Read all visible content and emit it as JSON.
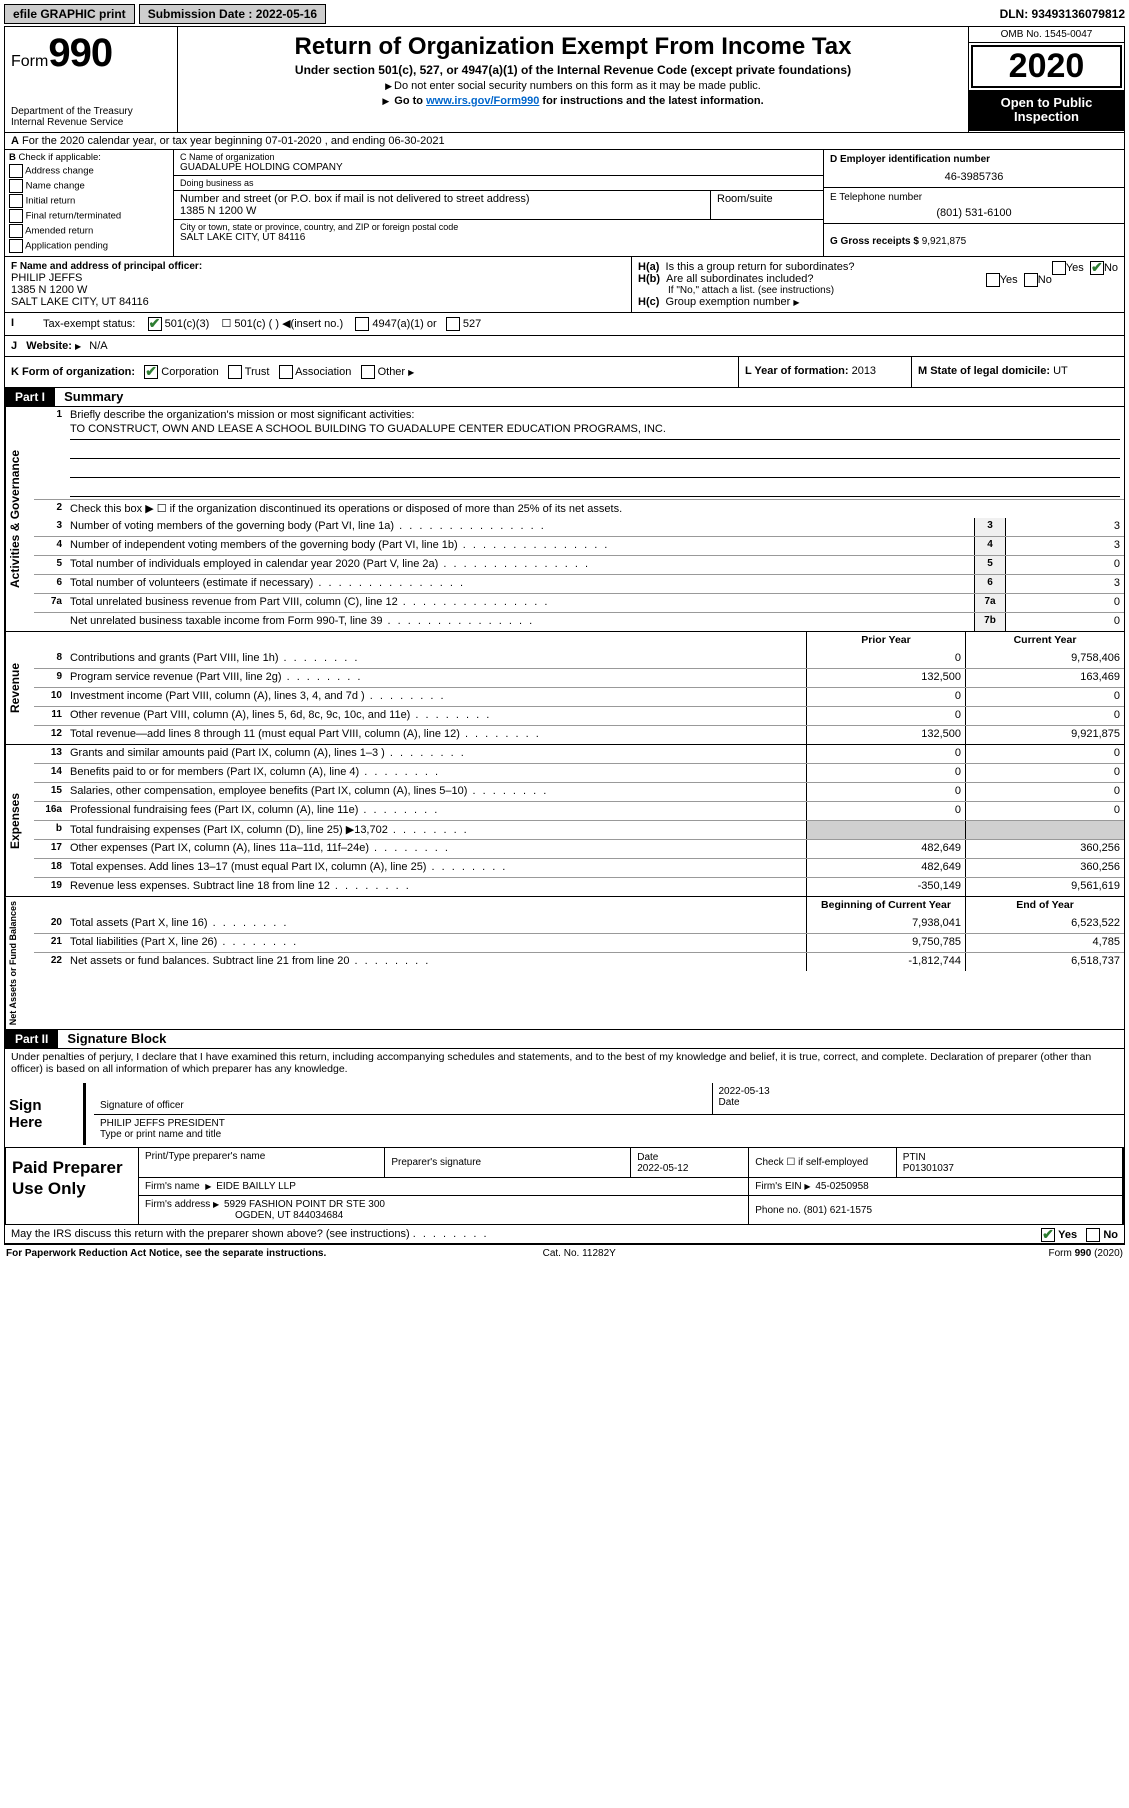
{
  "topbar": {
    "efile": "efile GRAPHIC print",
    "submission_label": "Submission Date : 2022-05-16",
    "dln": "DLN: 93493136079812"
  },
  "header": {
    "form_word": "Form",
    "form_num": "990",
    "dept": "Department of the Treasury\nInternal Revenue Service",
    "title": "Return of Organization Exempt From Income Tax",
    "subtitle": "Under section 501(c), 527, or 4947(a)(1) of the Internal Revenue Code (except private foundations)",
    "note1": "Do not enter social security numbers on this form as it may be made public.",
    "note2_pre": "Go to ",
    "note2_link": "www.irs.gov/Form990",
    "note2_post": " for instructions and the latest information.",
    "omb": "OMB No. 1545-0047",
    "year": "2020",
    "open": "Open to Public Inspection"
  },
  "periodA": "For the 2020 calendar year, or tax year beginning 07-01-2020    , and ending 06-30-2021",
  "boxB": {
    "label": "Check if applicable:",
    "items": [
      "Address change",
      "Name change",
      "Initial return",
      "Final return/terminated",
      "Amended return",
      "Application pending"
    ]
  },
  "boxC": {
    "name_lbl": "C Name of organization",
    "name": "GUADALUPE HOLDING COMPANY",
    "dba_lbl": "Doing business as",
    "dba": "",
    "addr_lbl": "Number and street (or P.O. box if mail is not delivered to street address)",
    "room_lbl": "Room/suite",
    "addr": "1385 N 1200 W",
    "city_lbl": "City or town, state or province, country, and ZIP or foreign postal code",
    "city": "SALT LAKE CITY, UT  84116"
  },
  "boxD": {
    "lbl": "D Employer identification number",
    "val": "46-3985736"
  },
  "boxE": {
    "lbl": "E Telephone number",
    "val": "(801) 531-6100"
  },
  "boxG": {
    "lbl": "G Gross receipts $",
    "val": "9,921,875"
  },
  "boxF": {
    "lbl": "F  Name and address of principal officer:",
    "name": "PHILIP JEFFS",
    "addr1": "1385 N 1200 W",
    "addr2": "SALT LAKE CITY, UT  84116"
  },
  "boxH": {
    "a": "Is this a group return for subordinates?",
    "b": "Are all subordinates included?",
    "b_note": "If \"No,\" attach a list. (see instructions)",
    "c": "Group exemption number"
  },
  "rowI": {
    "lbl": "Tax-exempt status:",
    "opts": [
      "501(c)(3)",
      "501(c) (  )",
      "(insert no.)",
      "4947(a)(1) or",
      "527"
    ]
  },
  "rowJ": {
    "lbl": "Website:",
    "val": "N/A"
  },
  "rowK": {
    "lbl": "K Form of organization:",
    "opts": [
      "Corporation",
      "Trust",
      "Association",
      "Other"
    ],
    "L_lbl": "L Year of formation:",
    "L_val": "2013",
    "M_lbl": "M State of legal domicile:",
    "M_val": "UT"
  },
  "part1": {
    "hdr": "Part I",
    "title": "Summary",
    "q1": "Briefly describe the organization's mission or most significant activities:",
    "mission": "TO CONSTRUCT, OWN AND LEASE A SCHOOL BUILDING TO GUADALUPE CENTER EDUCATION PROGRAMS, INC.",
    "q2": "Check this box ▶ ☐  if the organization discontinued its operations or disposed of more than 25% of its net assets.",
    "lines_gov": [
      {
        "n": "3",
        "t": "Number of voting members of the governing body (Part VI, line 1a)",
        "box": "3",
        "v": "3"
      },
      {
        "n": "4",
        "t": "Number of independent voting members of the governing body (Part VI, line 1b)",
        "box": "4",
        "v": "3"
      },
      {
        "n": "5",
        "t": "Total number of individuals employed in calendar year 2020 (Part V, line 2a)",
        "box": "5",
        "v": "0"
      },
      {
        "n": "6",
        "t": "Total number of volunteers (estimate if necessary)",
        "box": "6",
        "v": "3"
      },
      {
        "n": "7a",
        "t": "Total unrelated business revenue from Part VIII, column (C), line 12",
        "box": "7a",
        "v": "0"
      },
      {
        "n": "",
        "t": "Net unrelated business taxable income from Form 990-T, line 39",
        "box": "7b",
        "v": "0"
      }
    ],
    "col_prior": "Prior Year",
    "col_current": "Current Year",
    "lines_rev": [
      {
        "n": "8",
        "t": "Contributions and grants (Part VIII, line 1h)",
        "p": "0",
        "c": "9,758,406"
      },
      {
        "n": "9",
        "t": "Program service revenue (Part VIII, line 2g)",
        "p": "132,500",
        "c": "163,469"
      },
      {
        "n": "10",
        "t": "Investment income (Part VIII, column (A), lines 3, 4, and 7d )",
        "p": "0",
        "c": "0"
      },
      {
        "n": "11",
        "t": "Other revenue (Part VIII, column (A), lines 5, 6d, 8c, 9c, 10c, and 11e)",
        "p": "0",
        "c": "0"
      },
      {
        "n": "12",
        "t": "Total revenue—add lines 8 through 11 (must equal Part VIII, column (A), line 12)",
        "p": "132,500",
        "c": "9,921,875"
      }
    ],
    "lines_exp": [
      {
        "n": "13",
        "t": "Grants and similar amounts paid (Part IX, column (A), lines 1–3 )",
        "p": "0",
        "c": "0"
      },
      {
        "n": "14",
        "t": "Benefits paid to or for members (Part IX, column (A), line 4)",
        "p": "0",
        "c": "0"
      },
      {
        "n": "15",
        "t": "Salaries, other compensation, employee benefits (Part IX, column (A), lines 5–10)",
        "p": "0",
        "c": "0"
      },
      {
        "n": "16a",
        "t": "Professional fundraising fees (Part IX, column (A), line 11e)",
        "p": "0",
        "c": "0"
      },
      {
        "n": "b",
        "t": "Total fundraising expenses (Part IX, column (D), line 25) ▶13,702",
        "p": "",
        "c": "",
        "gray": true
      },
      {
        "n": "17",
        "t": "Other expenses (Part IX, column (A), lines 11a–11d, 11f–24e)",
        "p": "482,649",
        "c": "360,256"
      },
      {
        "n": "18",
        "t": "Total expenses. Add lines 13–17 (must equal Part IX, column (A), line 25)",
        "p": "482,649",
        "c": "360,256"
      },
      {
        "n": "19",
        "t": "Revenue less expenses. Subtract line 18 from line 12",
        "p": "-350,149",
        "c": "9,561,619"
      }
    ],
    "col_begin": "Beginning of Current Year",
    "col_end": "End of Year",
    "lines_net": [
      {
        "n": "20",
        "t": "Total assets (Part X, line 16)",
        "p": "7,938,041",
        "c": "6,523,522"
      },
      {
        "n": "21",
        "t": "Total liabilities (Part X, line 26)",
        "p": "9,750,785",
        "c": "4,785"
      },
      {
        "n": "22",
        "t": "Net assets or fund balances. Subtract line 21 from line 20",
        "p": "-1,812,744",
        "c": "6,518,737"
      }
    ],
    "tab_gov": "Activities & Governance",
    "tab_rev": "Revenue",
    "tab_exp": "Expenses",
    "tab_net": "Net Assets or Fund Balances"
  },
  "part2": {
    "hdr": "Part II",
    "title": "Signature Block",
    "perjury": "Under penalties of perjury, I declare that I have examined this return, including accompanying schedules and statements, and to the best of my knowledge and belief, it is true, correct, and complete. Declaration of preparer (other than officer) is based on all information of which preparer has any knowledge.",
    "sign_here": "Sign Here",
    "sig_officer": "Signature of officer",
    "sig_date_lbl": "Date",
    "sig_date": "2022-05-13",
    "sig_name": "PHILIP JEFFS PRESIDENT",
    "sig_name_lbl": "Type or print name and title",
    "paid": "Paid Preparer Use Only",
    "prep_name_lbl": "Print/Type preparer's name",
    "prep_sig_lbl": "Preparer's signature",
    "prep_date_lbl": "Date",
    "prep_date": "2022-05-12",
    "prep_self": "Check ☐ if self-employed",
    "ptin_lbl": "PTIN",
    "ptin": "P01301037",
    "firm_name_lbl": "Firm's name",
    "firm_name": "EIDE BAILLY LLP",
    "firm_ein_lbl": "Firm's EIN",
    "firm_ein": "45-0250958",
    "firm_addr_lbl": "Firm's address",
    "firm_addr1": "5929 FASHION POINT DR STE 300",
    "firm_addr2": "OGDEN, UT  844034684",
    "phone_lbl": "Phone no.",
    "phone": "(801) 621-1575",
    "discuss": "May the IRS discuss this return with the preparer shown above? (see instructions)"
  },
  "footer": {
    "pra": "For Paperwork Reduction Act Notice, see the separate instructions.",
    "cat": "Cat. No. 11282Y",
    "form": "Form 990 (2020)"
  },
  "yesno": {
    "yes": "Yes",
    "no": "No"
  }
}
